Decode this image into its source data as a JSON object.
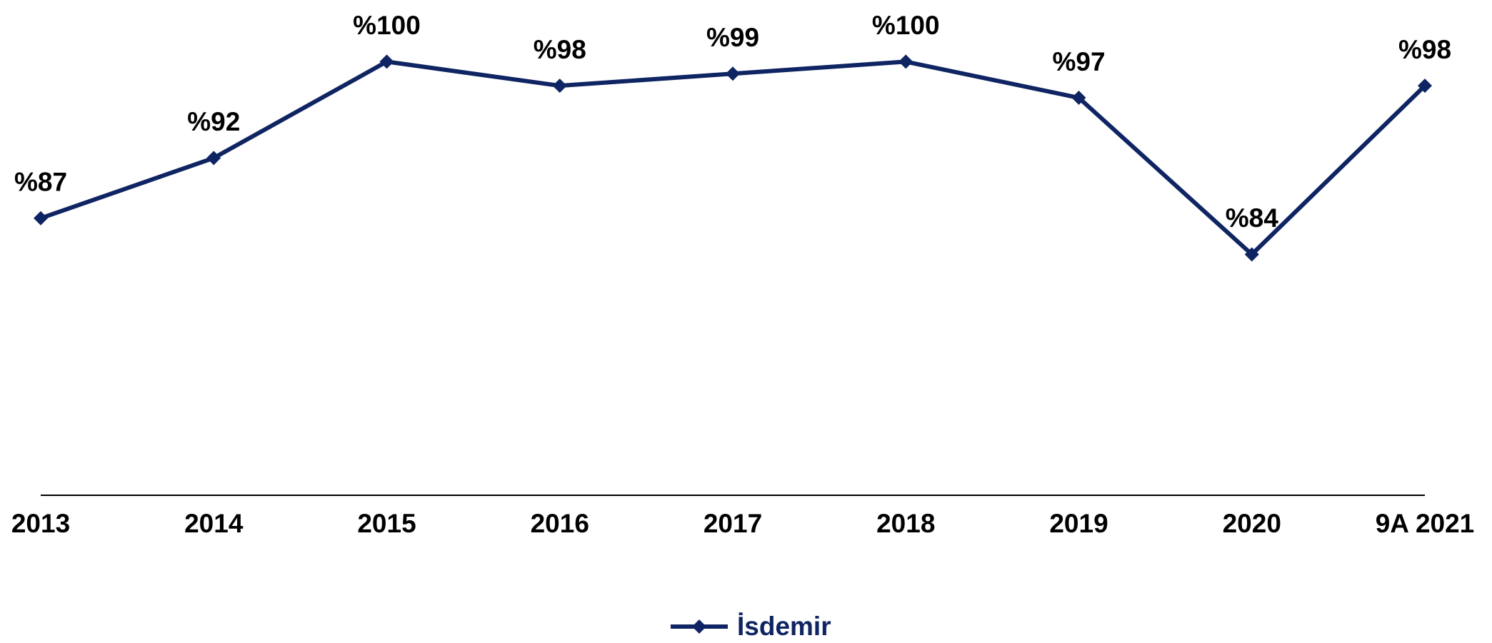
{
  "chart_data": {
    "type": "line",
    "categories": [
      "2013",
      "2014",
      "2015",
      "2016",
      "2017",
      "2018",
      "2019",
      "2020",
      "9A 2021"
    ],
    "series": [
      {
        "name": "İsdemir",
        "color": "#0f2462",
        "values": [
          87,
          92,
          100,
          98,
          99,
          100,
          97,
          84,
          98
        ],
        "value_labels": [
          "%87",
          "%92",
          "%100",
          "%98",
          "%99",
          "%100",
          "%97",
          "%84",
          "%98"
        ]
      }
    ],
    "ylim": [
      64,
      105
    ],
    "legend": "bottom"
  }
}
